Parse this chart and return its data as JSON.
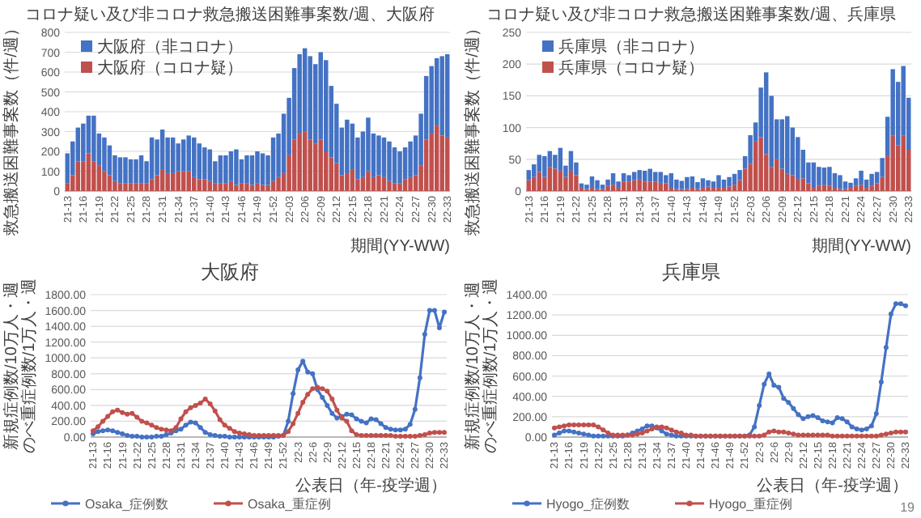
{
  "chart_data": [
    {
      "type": "bar",
      "title": "コロナ疑い及び非コロナ救急搬送困難事案数/週、大阪府",
      "xlabel": "期間(YY-WW)",
      "ylabel": "救急搬送困難事案数（件/週）",
      "stacked": true,
      "legend": "top left",
      "grid": "y",
      "ylim": [
        0,
        800
      ],
      "yticks": [
        0,
        100,
        200,
        300,
        400,
        500,
        600,
        700,
        800
      ],
      "categories": [
        "21-13",
        null,
        null,
        "21-16",
        null,
        null,
        "21-19",
        null,
        null,
        "21-22",
        null,
        null,
        "21-25",
        null,
        null,
        "21-28",
        null,
        null,
        "21-31",
        null,
        null,
        "21-34",
        null,
        null,
        "21-37",
        null,
        null,
        "21-40",
        null,
        null,
        "21-43",
        null,
        null,
        "21-46",
        null,
        null,
        "21-49",
        null,
        null,
        "21-52",
        null,
        null,
        "22-03",
        null,
        null,
        "22-06",
        null,
        null,
        "22-09",
        null,
        null,
        "22-12",
        null,
        null,
        "22-15",
        null,
        null,
        "22-18",
        null,
        null,
        "22-21",
        null,
        null,
        "22-24",
        null,
        null,
        "22-27",
        null,
        null,
        "22-30",
        null,
        null,
        "22-33"
      ],
      "series": [
        {
          "name": "大阪府（コロナ疑）",
          "color": "#c0504d",
          "values": [
            40,
            80,
            150,
            150,
            190,
            150,
            130,
            100,
            80,
            50,
            40,
            40,
            40,
            40,
            40,
            40,
            60,
            80,
            110,
            90,
            90,
            100,
            100,
            100,
            70,
            60,
            60,
            50,
            40,
            40,
            40,
            50,
            30,
            40,
            40,
            30,
            40,
            30,
            30,
            50,
            70,
            90,
            180,
            260,
            290,
            300,
            260,
            240,
            260,
            200,
            170,
            140,
            80,
            90,
            110,
            60,
            70,
            100,
            70,
            80,
            70,
            50,
            40,
            40,
            60,
            70,
            80,
            130,
            260,
            290,
            330,
            280,
            270
          ]
        },
        {
          "name": "大阪府（非コロナ）",
          "color": "#4472c4",
          "values": [
            150,
            170,
            170,
            190,
            190,
            230,
            160,
            170,
            150,
            130,
            130,
            130,
            120,
            120,
            140,
            110,
            210,
            180,
            200,
            180,
            180,
            140,
            160,
            180,
            200,
            180,
            160,
            160,
            110,
            140,
            140,
            150,
            180,
            120,
            140,
            150,
            160,
            160,
            150,
            220,
            220,
            300,
            290,
            360,
            400,
            420,
            420,
            400,
            440,
            460,
            360,
            300,
            240,
            270,
            230,
            210,
            230,
            270,
            220,
            200,
            200,
            200,
            180,
            160,
            160,
            180,
            200,
            260,
            320,
            340,
            340,
            400,
            420
          ]
        }
      ]
    },
    {
      "type": "bar",
      "title": "コロナ疑い及び非コロナ救急搬送困難事案数/週、兵庫県",
      "xlabel": "期間(YY-WW)",
      "ylabel": "救急搬送困難事案数（件/週）",
      "stacked": true,
      "legend": "top left",
      "grid": "y",
      "ylim": [
        0,
        250
      ],
      "yticks": [
        0,
        50,
        100,
        150,
        200,
        250
      ],
      "categories": [
        "21-13",
        null,
        null,
        "21-16",
        null,
        null,
        "21-19",
        null,
        null,
        "21-22",
        null,
        null,
        "21-25",
        null,
        null,
        "21-28",
        null,
        null,
        "21-31",
        null,
        null,
        "21-34",
        null,
        null,
        "21-37",
        null,
        null,
        "21-40",
        null,
        null,
        "21-43",
        null,
        null,
        "21-46",
        null,
        null,
        "21-49",
        null,
        null,
        "21-52",
        null,
        null,
        "22-03",
        null,
        null,
        "22-06",
        null,
        null,
        "22-09",
        null,
        null,
        "22-12",
        null,
        null,
        "22-15",
        null,
        null,
        "22-18",
        null,
        null,
        "22-21",
        null,
        null,
        "22-24",
        null,
        null,
        "22-27",
        null,
        null,
        "22-30",
        null,
        null,
        "22-33"
      ],
      "series": [
        {
          "name": "兵庫県（コロナ疑）",
          "color": "#c0504d",
          "values": [
            17,
            22,
            30,
            22,
            38,
            35,
            32,
            22,
            32,
            25,
            5,
            3,
            5,
            3,
            3,
            8,
            10,
            5,
            15,
            15,
            17,
            18,
            15,
            15,
            15,
            13,
            12,
            5,
            3,
            3,
            3,
            5,
            3,
            5,
            7,
            5,
            5,
            5,
            7,
            10,
            17,
            35,
            43,
            78,
            85,
            58,
            38,
            50,
            35,
            27,
            25,
            18,
            20,
            12,
            5,
            8,
            10,
            8,
            5,
            3,
            3,
            5,
            8,
            10,
            5,
            8,
            12,
            22,
            55,
            87,
            72,
            87,
            65
          ]
        },
        {
          "name": "兵庫県（非コロナ）",
          "color": "#4472c4",
          "values": [
            16,
            20,
            27,
            33,
            25,
            22,
            36,
            18,
            31,
            20,
            7,
            7,
            18,
            14,
            7,
            10,
            18,
            10,
            13,
            10,
            13,
            15,
            17,
            20,
            15,
            17,
            13,
            23,
            15,
            13,
            19,
            18,
            11,
            15,
            10,
            10,
            20,
            13,
            15,
            17,
            16,
            20,
            45,
            30,
            78,
            129,
            112,
            63,
            78,
            91,
            75,
            67,
            45,
            33,
            40,
            30,
            27,
            30,
            23,
            22,
            12,
            8,
            12,
            22,
            13,
            19,
            18,
            30,
            62,
            105,
            100,
            110,
            82
          ]
        }
      ]
    },
    {
      "type": "line",
      "title": "大阪府",
      "xlabel": "公表日（年-疫学週）",
      "ylabel": [
        "新規症例数/10万人・週",
        "のべ重症例数/1万人・週"
      ],
      "legend": "bottom",
      "grid": "y",
      "marker": "circle",
      "ylim": [
        0,
        1800
      ],
      "yticks": [
        {
          "value": 0,
          "label": "0.00"
        },
        {
          "value": 200,
          "label": "200.00"
        },
        {
          "value": 400,
          "label": "400.00"
        },
        {
          "value": 600,
          "label": "600.00"
        },
        {
          "value": 800,
          "label": "800.00"
        },
        {
          "value": 1000,
          "label": "1000.00"
        },
        {
          "value": 1200,
          "label": "1200.00"
        },
        {
          "value": 1400,
          "label": "1400.00"
        },
        {
          "value": 1600,
          "label": "1600.00"
        },
        {
          "value": 1800,
          "label": "1800.00"
        }
      ],
      "categories": [
        "21-13",
        null,
        null,
        "21-16",
        null,
        null,
        "21-19",
        null,
        null,
        "21-22",
        null,
        null,
        "21-25",
        null,
        null,
        "21-28",
        null,
        null,
        "21-31",
        null,
        null,
        "21-34",
        null,
        null,
        "21-37",
        null,
        null,
        "21-40",
        null,
        null,
        "21-43",
        null,
        null,
        "21-46",
        null,
        null,
        "21-49",
        null,
        null,
        "21-52",
        null,
        null,
        "22-3",
        null,
        null,
        "22-6",
        null,
        null,
        "22-9",
        null,
        null,
        "22-12",
        null,
        null,
        "22-15",
        null,
        null,
        "22-18",
        null,
        null,
        "22-21",
        null,
        null,
        "22-24",
        null,
        null,
        "22-27",
        null,
        null,
        "22-30",
        null,
        null,
        "22-33"
      ],
      "series": [
        {
          "name": "Osaka_症例数",
          "color": "#4472c4",
          "values": [
            40,
            70,
            80,
            90,
            80,
            60,
            40,
            20,
            10,
            10,
            0,
            0,
            0,
            10,
            10,
            30,
            50,
            80,
            100,
            150,
            190,
            180,
            120,
            60,
            30,
            20,
            10,
            10,
            0,
            0,
            0,
            0,
            0,
            0,
            0,
            0,
            0,
            0,
            10,
            20,
            200,
            550,
            850,
            960,
            820,
            800,
            600,
            500,
            400,
            300,
            240,
            260,
            290,
            280,
            230,
            200,
            180,
            230,
            220,
            170,
            120,
            100,
            90,
            90,
            100,
            160,
            350,
            750,
            1300,
            1600,
            1600,
            1380,
            1580
          ]
        },
        {
          "name": "Osaka_重症例",
          "color": "#c0504d",
          "values": [
            80,
            130,
            200,
            260,
            320,
            340,
            310,
            290,
            300,
            250,
            200,
            180,
            150,
            120,
            100,
            90,
            80,
            120,
            230,
            320,
            370,
            400,
            430,
            480,
            420,
            330,
            220,
            150,
            110,
            70,
            50,
            40,
            30,
            20,
            20,
            20,
            20,
            20,
            20,
            20,
            70,
            170,
            300,
            440,
            540,
            610,
            630,
            610,
            580,
            480,
            340,
            240,
            200,
            80,
            30,
            20,
            20,
            20,
            20,
            20,
            20,
            20,
            10,
            10,
            10,
            10,
            10,
            20,
            30,
            50,
            60,
            60,
            60
          ]
        }
      ]
    },
    {
      "type": "line",
      "title": "兵庫県",
      "xlabel": "公表日（年-疫学週）",
      "ylabel": [
        "新規症例数/10万人・週",
        "のべ重症例数/1万人・週"
      ],
      "legend": "bottom",
      "grid": "y",
      "marker": "circle",
      "ylim": [
        0,
        1400
      ],
      "annotations": [
        "19"
      ],
      "yticks": [
        {
          "value": 0,
          "label": "0.00"
        },
        {
          "value": 200,
          "label": "200.00"
        },
        {
          "value": 400,
          "label": "400.00"
        },
        {
          "value": 600,
          "label": "600.00"
        },
        {
          "value": 800,
          "label": "800.00"
        },
        {
          "value": 1000,
          "label": "1000.00"
        },
        {
          "value": 1200,
          "label": "1200.00"
        },
        {
          "value": 1400,
          "label": "1400.00"
        }
      ],
      "categories": [
        "21-13",
        null,
        null,
        "21-16",
        null,
        null,
        "21-19",
        null,
        null,
        "21-22",
        null,
        null,
        "21-25",
        null,
        null,
        "21-28",
        null,
        null,
        "21-31",
        null,
        null,
        "21-34",
        null,
        null,
        "21-37",
        null,
        null,
        "21-40",
        null,
        null,
        "21-43",
        null,
        null,
        "21-46",
        null,
        null,
        "21-49",
        null,
        null,
        "21-52",
        null,
        null,
        "22-3",
        null,
        null,
        "22-6",
        null,
        null,
        "22-9",
        null,
        null,
        "22-12",
        null,
        null,
        "22-15",
        null,
        null,
        "22-18",
        null,
        null,
        "22-21",
        null,
        null,
        "22-24",
        null,
        null,
        "22-27",
        null,
        null,
        "22-30",
        null,
        null,
        "22-33"
      ],
      "series": [
        {
          "name": "Hyogo_症例数",
          "color": "#4472c4",
          "values": [
            20,
            40,
            60,
            60,
            50,
            40,
            30,
            20,
            10,
            10,
            10,
            10,
            10,
            10,
            10,
            20,
            40,
            60,
            80,
            110,
            110,
            90,
            60,
            30,
            20,
            10,
            10,
            10,
            10,
            10,
            10,
            10,
            10,
            10,
            10,
            10,
            10,
            10,
            10,
            10,
            20,
            100,
            310,
            520,
            620,
            510,
            490,
            380,
            340,
            280,
            220,
            180,
            200,
            210,
            190,
            160,
            150,
            140,
            190,
            180,
            150,
            100,
            80,
            70,
            80,
            110,
            230,
            540,
            880,
            1210,
            1310,
            1310,
            1290
          ]
        },
        {
          "name": "Hyogo_重症例",
          "color": "#c0504d",
          "values": [
            90,
            100,
            110,
            120,
            120,
            120,
            120,
            120,
            120,
            100,
            70,
            40,
            20,
            20,
            20,
            20,
            20,
            30,
            40,
            60,
            80,
            100,
            100,
            90,
            70,
            50,
            40,
            20,
            20,
            10,
            10,
            10,
            10,
            10,
            10,
            10,
            10,
            10,
            10,
            10,
            10,
            10,
            10,
            20,
            50,
            60,
            50,
            50,
            40,
            30,
            20,
            20,
            20,
            20,
            20,
            20,
            20,
            10,
            10,
            10,
            10,
            10,
            10,
            10,
            10,
            10,
            10,
            20,
            30,
            40,
            50,
            50,
            50
          ]
        }
      ]
    }
  ]
}
